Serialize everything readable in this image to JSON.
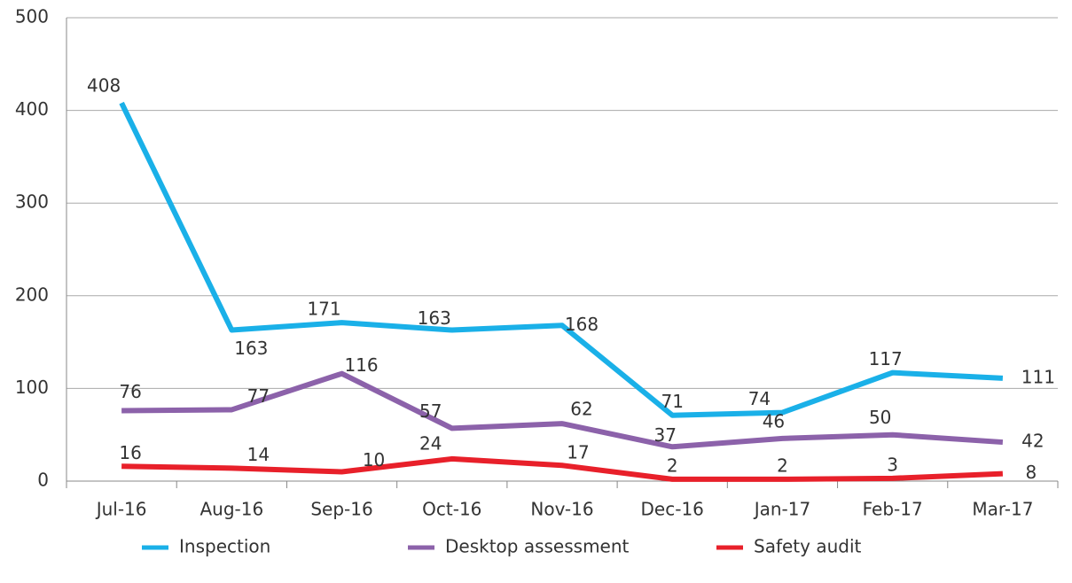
{
  "chart_data": {
    "type": "line",
    "categories": [
      "Jul-16",
      "Aug-16",
      "Sep-16",
      "Oct-16",
      "Nov-16",
      "Dec-16",
      "Jan-17",
      "Feb-17",
      "Mar-17"
    ],
    "series": [
      {
        "name": "Inspection",
        "color": "#1ab0e8",
        "values": [
          408,
          163,
          171,
          163,
          168,
          71,
          74,
          117,
          111
        ]
      },
      {
        "name": "Desktop assessment",
        "color": "#8c62aa",
        "values": [
          76,
          77,
          116,
          57,
          62,
          37,
          46,
          50,
          42
        ]
      },
      {
        "name": "Safety audit",
        "color": "#e8202a",
        "values": [
          16,
          14,
          10,
          24,
          17,
          2,
          2,
          3,
          8
        ]
      }
    ],
    "ylim": [
      0,
      500
    ],
    "yticks": [
      0,
      100,
      200,
      300,
      400,
      500
    ],
    "grid": true,
    "legend": "bottom"
  }
}
